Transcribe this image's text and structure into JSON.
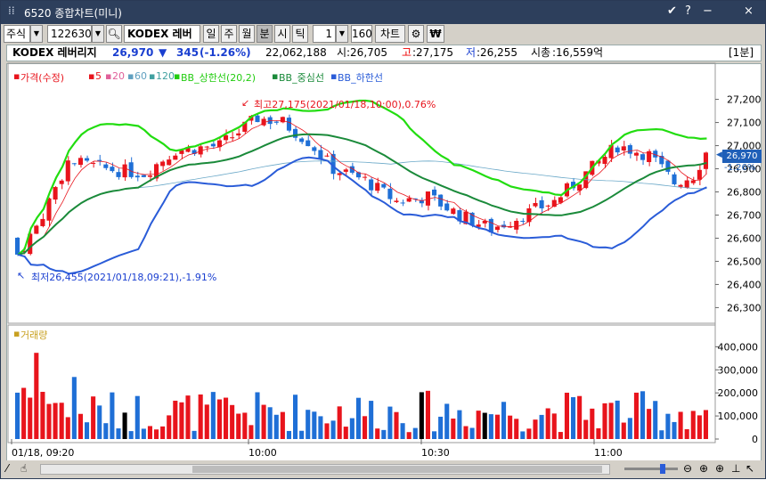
{
  "window": {
    "title": "6520 종합차트(미니)",
    "buttons": [
      "✔",
      "?",
      "−",
      "×"
    ]
  },
  "toolbar": {
    "market": "주식",
    "code": "122630",
    "name": "KODEX 레버리",
    "periods": [
      "일",
      "주",
      "월",
      "분",
      "시",
      "틱"
    ],
    "selected_period": "분",
    "interval": "1",
    "count": "160",
    "chart_button": "차트",
    "settings_icon": "gear-icon",
    "won_icon": "₩"
  },
  "info": {
    "name": "KODEX 레버리지",
    "price": "26,970",
    "change_arrow": "▼",
    "change": "345",
    "change_pct": "(-1.26%)",
    "volume": "22,062,188",
    "open_label": "시",
    "open": ":26,705",
    "high_label": "고",
    "high": ":27,175",
    "low_label": "저",
    "low": ":26,255",
    "mcap_label": "시총",
    "mcap": ":16,559억",
    "interval_tag": "[1분]"
  },
  "legend": {
    "price": "가격(수정)",
    "ma5": "5",
    "ma20": "20",
    "ma60": "60",
    "ma120": "120",
    "bb_upper": "BB_상한선(20,2)",
    "bb_mid": "BB_중심선",
    "bb_lower": "BB_하한선",
    "volume": "거래량"
  },
  "annotations": {
    "high": "최고27,175(2021/01/18,10:00),0.76%",
    "low": "최저26,455(2021/01/18,09:21),-1.91%"
  },
  "current": {
    "price": "26,970",
    "pct": "-1.26%"
  },
  "colors": {
    "up": "#e8141c",
    "down": "#1f6fd6",
    "bb_upper": "#22dd10",
    "bb_mid": "#1a8a3a",
    "bb_lower": "#2a5cd8",
    "title_bg": "#2d3f5c"
  },
  "chart_data": [
    {
      "type": "candlestick",
      "y_ticks": [
        26300,
        26400,
        26500,
        26600,
        26700,
        26800,
        26900,
        27000,
        27100,
        27200
      ],
      "ylim": [
        26240,
        27260
      ],
      "x_ticks": [
        "01/18, 09:20",
        "10:00",
        "10:30",
        "11:00"
      ],
      "high_annotation": 27175,
      "low_annotation": 26455,
      "last_price": 26970
    },
    {
      "type": "bar",
      "title": "거래량",
      "y_ticks": [
        0,
        100000,
        200000,
        300000,
        400000
      ],
      "y_tick_labels": [
        "0",
        "100,000",
        "200,000",
        "300,000",
        "400,000"
      ],
      "ylim": [
        0,
        440000
      ]
    }
  ]
}
